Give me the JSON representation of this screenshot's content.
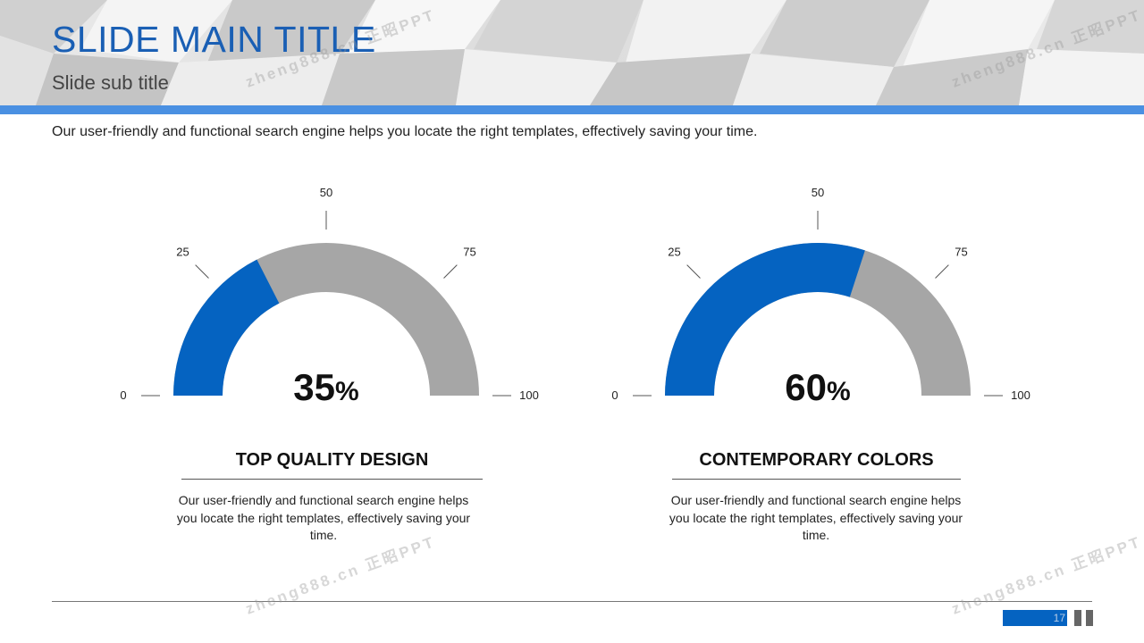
{
  "slide": {
    "title": "SLIDE MAIN TITLE",
    "subtitle": "Slide sub title",
    "intro": "Our user-friendly and functional search engine helps you locate the right templates, effectively saving your time."
  },
  "colors": {
    "accent": "#0563c1",
    "track": "#a6a6a6",
    "header_bar": "#4a90e2",
    "title": "#1a5fb4"
  },
  "gauges": [
    {
      "value": 35,
      "number": "35",
      "suffix": "%",
      "ticks": [
        "0",
        "25",
        "50",
        "75",
        "100"
      ],
      "title": "TOP QUALITY DESIGN",
      "description": "Our user-friendly and functional search engine helps you locate the right templates, effectively saving your time."
    },
    {
      "value": 60,
      "number": "60",
      "suffix": "%",
      "ticks": [
        "0",
        "25",
        "50",
        "75",
        "100"
      ],
      "title": "CONTEMPORARY COLORS",
      "description": "Our user-friendly and functional search engine helps you locate the right templates, effectively saving your time."
    }
  ],
  "footer": {
    "page_number": "17"
  },
  "watermark": {
    "text": "zheng888.cn 正昭PPT"
  }
}
